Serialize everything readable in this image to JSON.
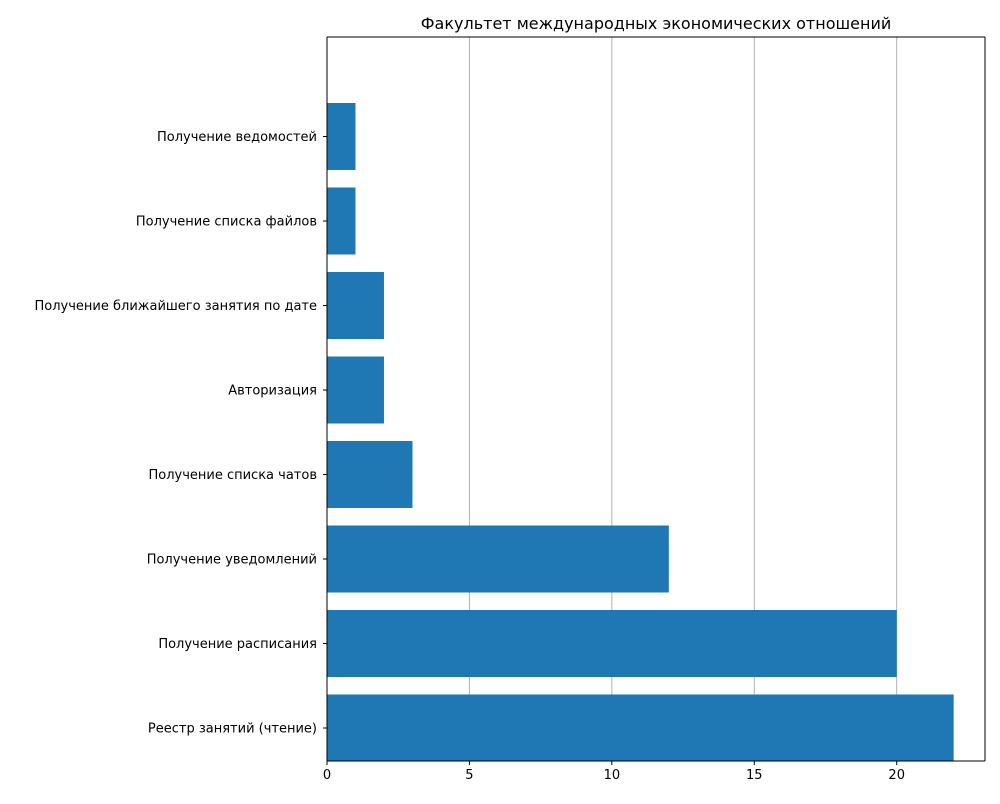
{
  "chart_data": {
    "type": "bar",
    "orientation": "horizontal",
    "title": "Факультет международных экономических отношений",
    "xlabel": "",
    "ylabel": "",
    "categories": [
      "Реестр занятий (чтение)",
      "Получение расписания",
      "Получение уведомлений",
      "Получение списка чатов",
      "Авторизация",
      "Получение ближайшего занятия по дате",
      "Получение списка файлов",
      "Получение ведомостей"
    ],
    "values": [
      22,
      20,
      12,
      3,
      2,
      2,
      1,
      1
    ],
    "xlim": [
      0,
      23.1
    ],
    "xticks": [
      0,
      5,
      10,
      15,
      20
    ],
    "grid": {
      "x": true,
      "y": false
    },
    "legend": "none",
    "bar_color": "#1f77b4",
    "grid_color": "#b0b0b0"
  }
}
